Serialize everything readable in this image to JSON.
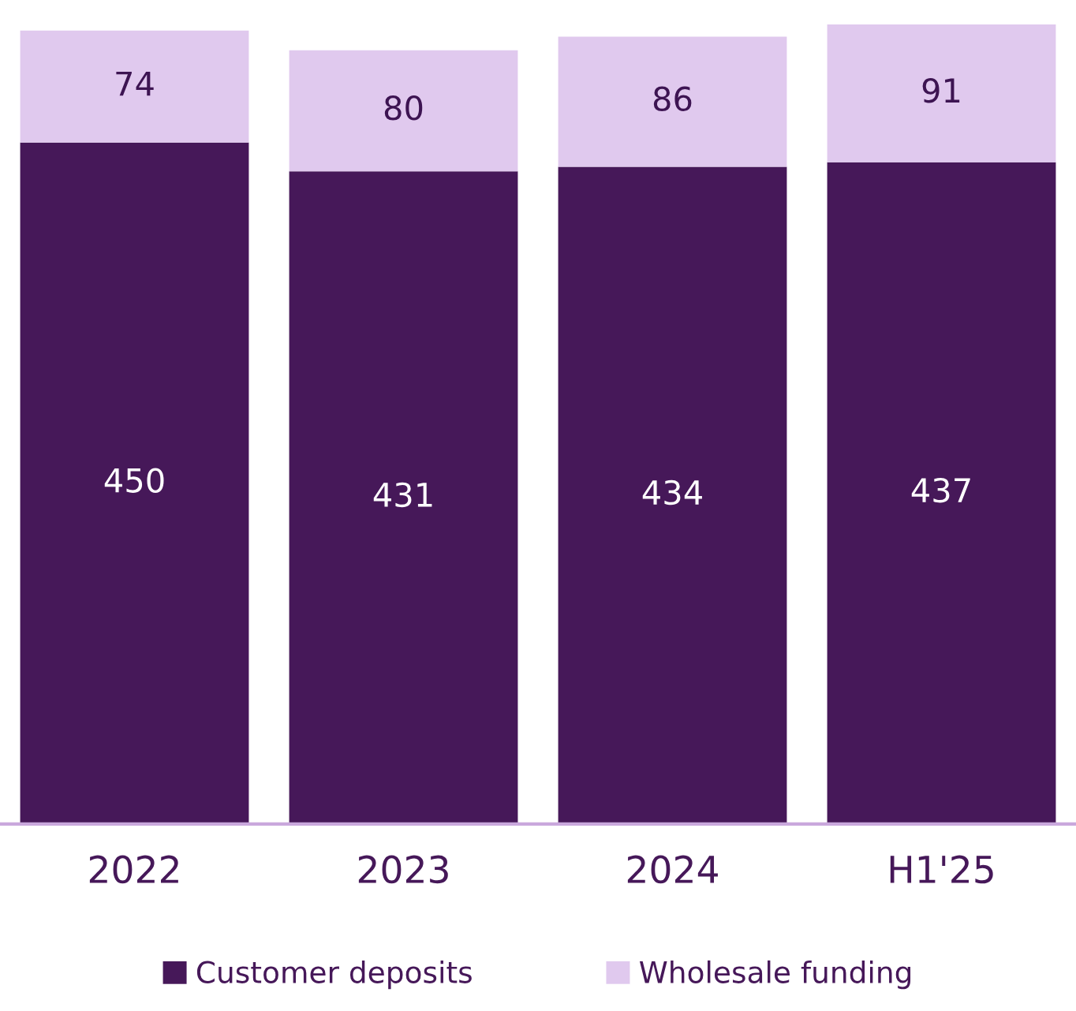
{
  "chart_data": {
    "type": "bar",
    "stacked": true,
    "categories": [
      "2022",
      "2023",
      "2024",
      "H1'25"
    ],
    "series": [
      {
        "name": "Customer deposits",
        "color": "#461859",
        "values": [
          450,
          431,
          434,
          437
        ]
      },
      {
        "name": "Wholesale funding",
        "color": "#e0c9ee",
        "values": [
          74,
          80,
          86,
          91
        ]
      }
    ],
    "data_labels": true,
    "legend": "bottom",
    "grid": false
  }
}
